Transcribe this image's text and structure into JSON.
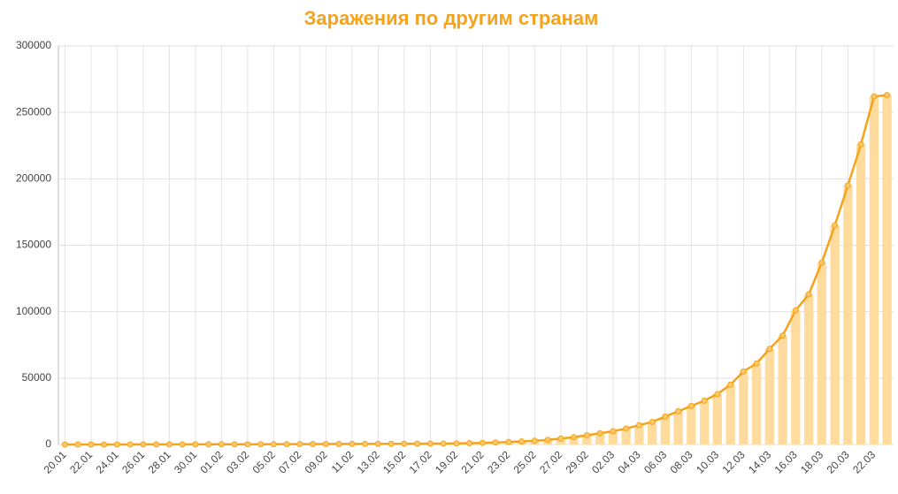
{
  "chart_data": {
    "type": "line",
    "title": "Заражения по другим странам",
    "categories": [
      "20.01",
      null,
      "22.01",
      null,
      "24.01",
      null,
      "26.01",
      null,
      "28.01",
      null,
      "30.01",
      null,
      "01.02",
      null,
      "03.02",
      null,
      "05.02",
      null,
      "07.02",
      null,
      "09.02",
      null,
      "11.02",
      null,
      "13.02",
      null,
      "15.02",
      null,
      "17.02",
      null,
      "19.02",
      null,
      "21.02",
      null,
      "23.02",
      null,
      "25.02",
      null,
      "27.02",
      null,
      "29.02",
      null,
      "02.03",
      null,
      "04.03",
      null,
      "06.03",
      null,
      "08.03",
      null,
      "10.03",
      null,
      "12.03",
      null,
      "14.03",
      null,
      "16.03",
      null,
      "18.03",
      null,
      "20.03",
      null,
      "22.03",
      null
    ],
    "series": [
      {
        "color": "#f5a31a",
        "bar_color": "#ffdb9e",
        "values": [
          4,
          6,
          9,
          14,
          20,
          30,
          45,
          60,
          70,
          80,
          100,
          130,
          150,
          160,
          180,
          200,
          220,
          260,
          290,
          320,
          360,
          390,
          420,
          450,
          480,
          510,
          550,
          590,
          640,
          700,
          800,
          1000,
          1200,
          1500,
          1900,
          2300,
          2800,
          3500,
          4500,
          5500,
          7000,
          8500,
          10000,
          12000,
          14500,
          17000,
          21000,
          25000,
          29000,
          33000,
          38000,
          45000,
          55000,
          61000,
          72000,
          82000,
          101000,
          113000,
          137000,
          165000,
          195000,
          226000,
          262000,
          263000
        ]
      }
    ],
    "ylim": [
      0,
      300000
    ],
    "yticks": [
      0,
      50000,
      100000,
      150000,
      200000,
      250000,
      300000
    ],
    "grid": true
  }
}
